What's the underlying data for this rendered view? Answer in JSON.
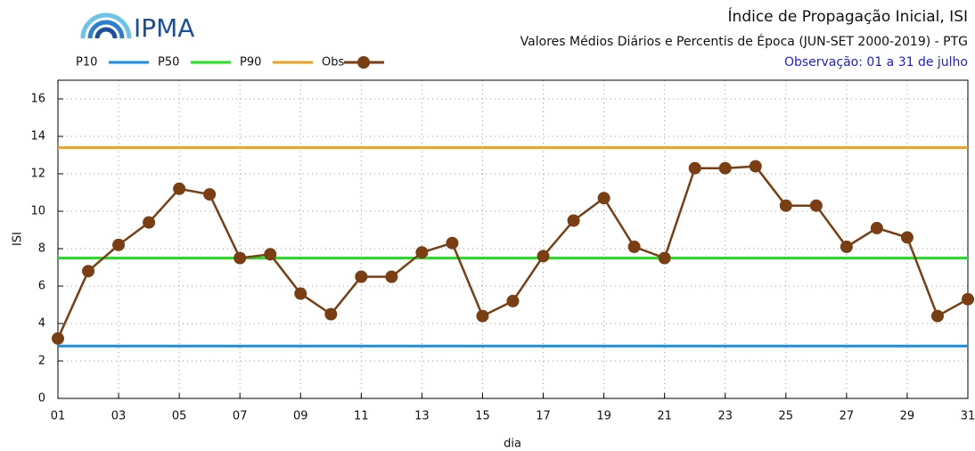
{
  "logo": {
    "text": "IPMA"
  },
  "chart_data": {
    "type": "line",
    "title": "Índice de Propagação Inicial, ISI",
    "subtitle": "Valores Médios Diários e Percentis de Época (JUN-SET 2000-2019) - PTG",
    "note": "Observação: 01 a 31 de julho",
    "xlabel": "dia",
    "ylabel": "ISI",
    "x": [
      1,
      2,
      3,
      4,
      5,
      6,
      7,
      8,
      9,
      10,
      11,
      12,
      13,
      14,
      15,
      16,
      17,
      18,
      19,
      20,
      21,
      22,
      23,
      24,
      25,
      26,
      27,
      28,
      29,
      30,
      31
    ],
    "reference_lines": [
      {
        "name": "P10",
        "color": "#1a8fe0",
        "value": 2.8
      },
      {
        "name": "P50",
        "color": "#22e022",
        "value": 7.5
      },
      {
        "name": "P90",
        "color": "#f0a020",
        "value": 13.4
      }
    ],
    "series": [
      {
        "name": "Obs",
        "color": "#7a3e12",
        "values": [
          3.2,
          6.8,
          8.2,
          9.4,
          11.2,
          10.9,
          7.5,
          7.7,
          5.6,
          4.5,
          6.5,
          6.5,
          7.8,
          8.3,
          4.4,
          5.2,
          7.6,
          9.5,
          10.7,
          8.1,
          7.5,
          12.3,
          12.3,
          12.4,
          10.3,
          10.3,
          8.1,
          9.1,
          8.6,
          4.4,
          5.3
        ]
      }
    ],
    "xlim": [
      1,
      31
    ],
    "xticks": [
      {
        "value": 1,
        "label": "01"
      },
      {
        "value": 3,
        "label": "03"
      },
      {
        "value": 5,
        "label": "05"
      },
      {
        "value": 7,
        "label": "07"
      },
      {
        "value": 9,
        "label": "09"
      },
      11,
      13,
      15,
      17,
      19,
      21,
      23,
      25,
      27,
      29,
      31
    ],
    "ylim": [
      0,
      17
    ],
    "yticks": [
      0,
      2,
      4,
      6,
      8,
      10,
      12,
      14,
      16
    ],
    "grid": true
  }
}
